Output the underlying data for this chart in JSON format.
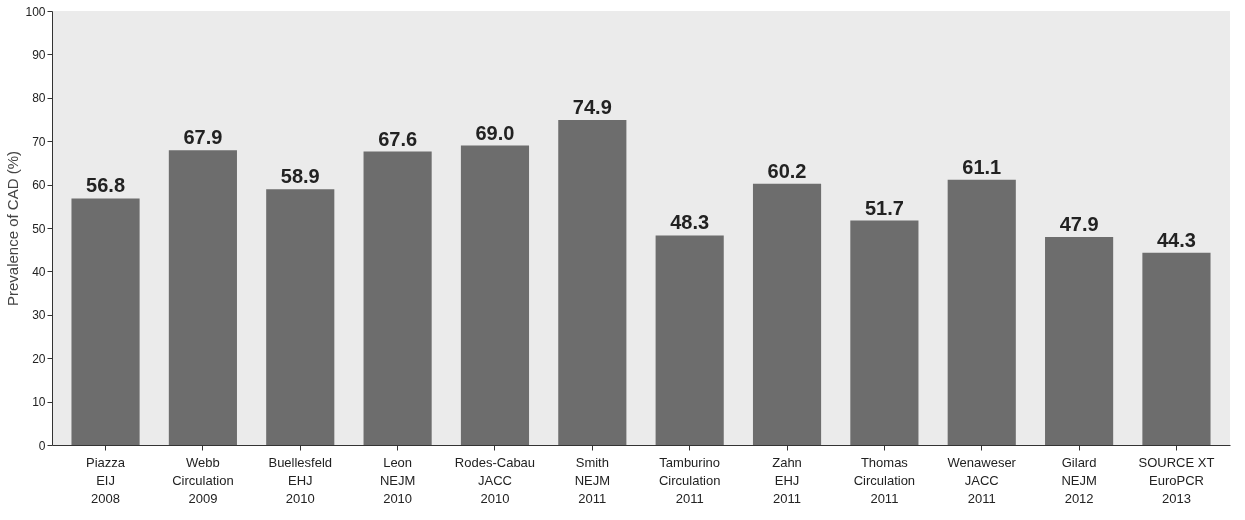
{
  "chart_data": {
    "type": "bar",
    "ylabel": "Prevalence of CAD (%)",
    "categories": [
      "Piazza\nEIJ\n2008",
      "Webb\nCirculation\n2009",
      "Buellesfeld\nEHJ\n2010",
      "Leon\nNEJM\n2010",
      "Rodes-Cabau\nJACC\n2010",
      "Smith\nNEJM\n2011",
      "Tamburino\nCirculation\n2011",
      "Zahn\nEHJ\n2011",
      "Thomas\nCirculation\n2011",
      "Wenaweser\nJACC\n2011",
      "Gilard\nNEJM\n2012",
      "SOURCE XT\nEuroPCR\n2013"
    ],
    "values": [
      56.8,
      67.9,
      58.9,
      67.6,
      69.0,
      74.9,
      48.3,
      60.2,
      51.7,
      61.1,
      47.9,
      44.3
    ],
    "value_labels": [
      "56.8",
      "67.9",
      "58.9",
      "67.6",
      "69.0",
      "74.9",
      "48.3",
      "60.2",
      "51.7",
      "61.1",
      "47.9",
      "44.3"
    ],
    "color": "#6d6d6d",
    "ylim": [
      0,
      100
    ],
    "yticks": [
      0,
      10,
      20,
      30,
      40,
      50,
      60,
      70,
      80,
      90,
      100
    ],
    "grid": false
  }
}
